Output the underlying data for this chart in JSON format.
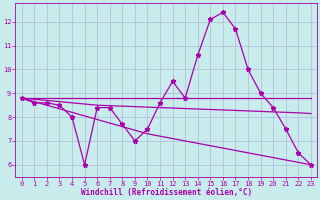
{
  "background_color": "#c8ecec",
  "grid_color": "#b0b8d8",
  "line_color": "#aa00aa",
  "x_values": [
    0,
    1,
    2,
    3,
    4,
    5,
    6,
    7,
    8,
    9,
    10,
    11,
    12,
    13,
    14,
    15,
    16,
    17,
    18,
    19,
    20,
    21,
    22,
    23
  ],
  "series_main": [
    8.8,
    8.6,
    8.6,
    8.5,
    8.0,
    6.0,
    8.4,
    8.4,
    7.7,
    7.0,
    7.5,
    8.6,
    9.5,
    8.8,
    10.6,
    12.1,
    12.4,
    11.7,
    10.0,
    9.0,
    8.4,
    7.5,
    6.5,
    6.0
  ],
  "line_flat1": [
    8.8,
    8.8,
    8.8,
    8.8,
    8.8,
    8.8,
    8.8,
    8.8,
    8.8,
    8.8,
    8.8,
    8.8,
    8.8,
    8.8,
    8.8,
    8.8,
    8.8,
    8.8,
    8.8,
    8.8,
    8.8,
    8.8,
    8.8,
    8.8
  ],
  "line_flat2": [
    8.8,
    8.75,
    8.7,
    8.65,
    8.6,
    8.55,
    8.5,
    8.48,
    8.46,
    8.44,
    8.42,
    8.4,
    8.38,
    8.36,
    8.34,
    8.32,
    8.3,
    8.28,
    8.26,
    8.24,
    8.22,
    8.2,
    8.18,
    8.15
  ],
  "line_diag": [
    8.8,
    8.65,
    8.5,
    8.35,
    8.2,
    8.05,
    7.9,
    7.75,
    7.6,
    7.45,
    7.3,
    7.2,
    7.1,
    7.0,
    6.9,
    6.8,
    6.7,
    6.6,
    6.5,
    6.4,
    6.3,
    6.2,
    6.1,
    6.0
  ],
  "xlabel": "Windchill (Refroidissement éolien,°C)",
  "ylim": [
    5.5,
    12.8
  ],
  "xlim": [
    -0.5,
    23.5
  ],
  "yticks": [
    6,
    7,
    8,
    9,
    10,
    11,
    12
  ],
  "xticks": [
    0,
    1,
    2,
    3,
    4,
    5,
    6,
    7,
    8,
    9,
    10,
    11,
    12,
    13,
    14,
    15,
    16,
    17,
    18,
    19,
    20,
    21,
    22,
    23
  ],
  "tick_fontsize": 5.0,
  "xlabel_fontsize": 5.5,
  "marker": "*",
  "markersize": 3.5,
  "linewidth": 0.9
}
